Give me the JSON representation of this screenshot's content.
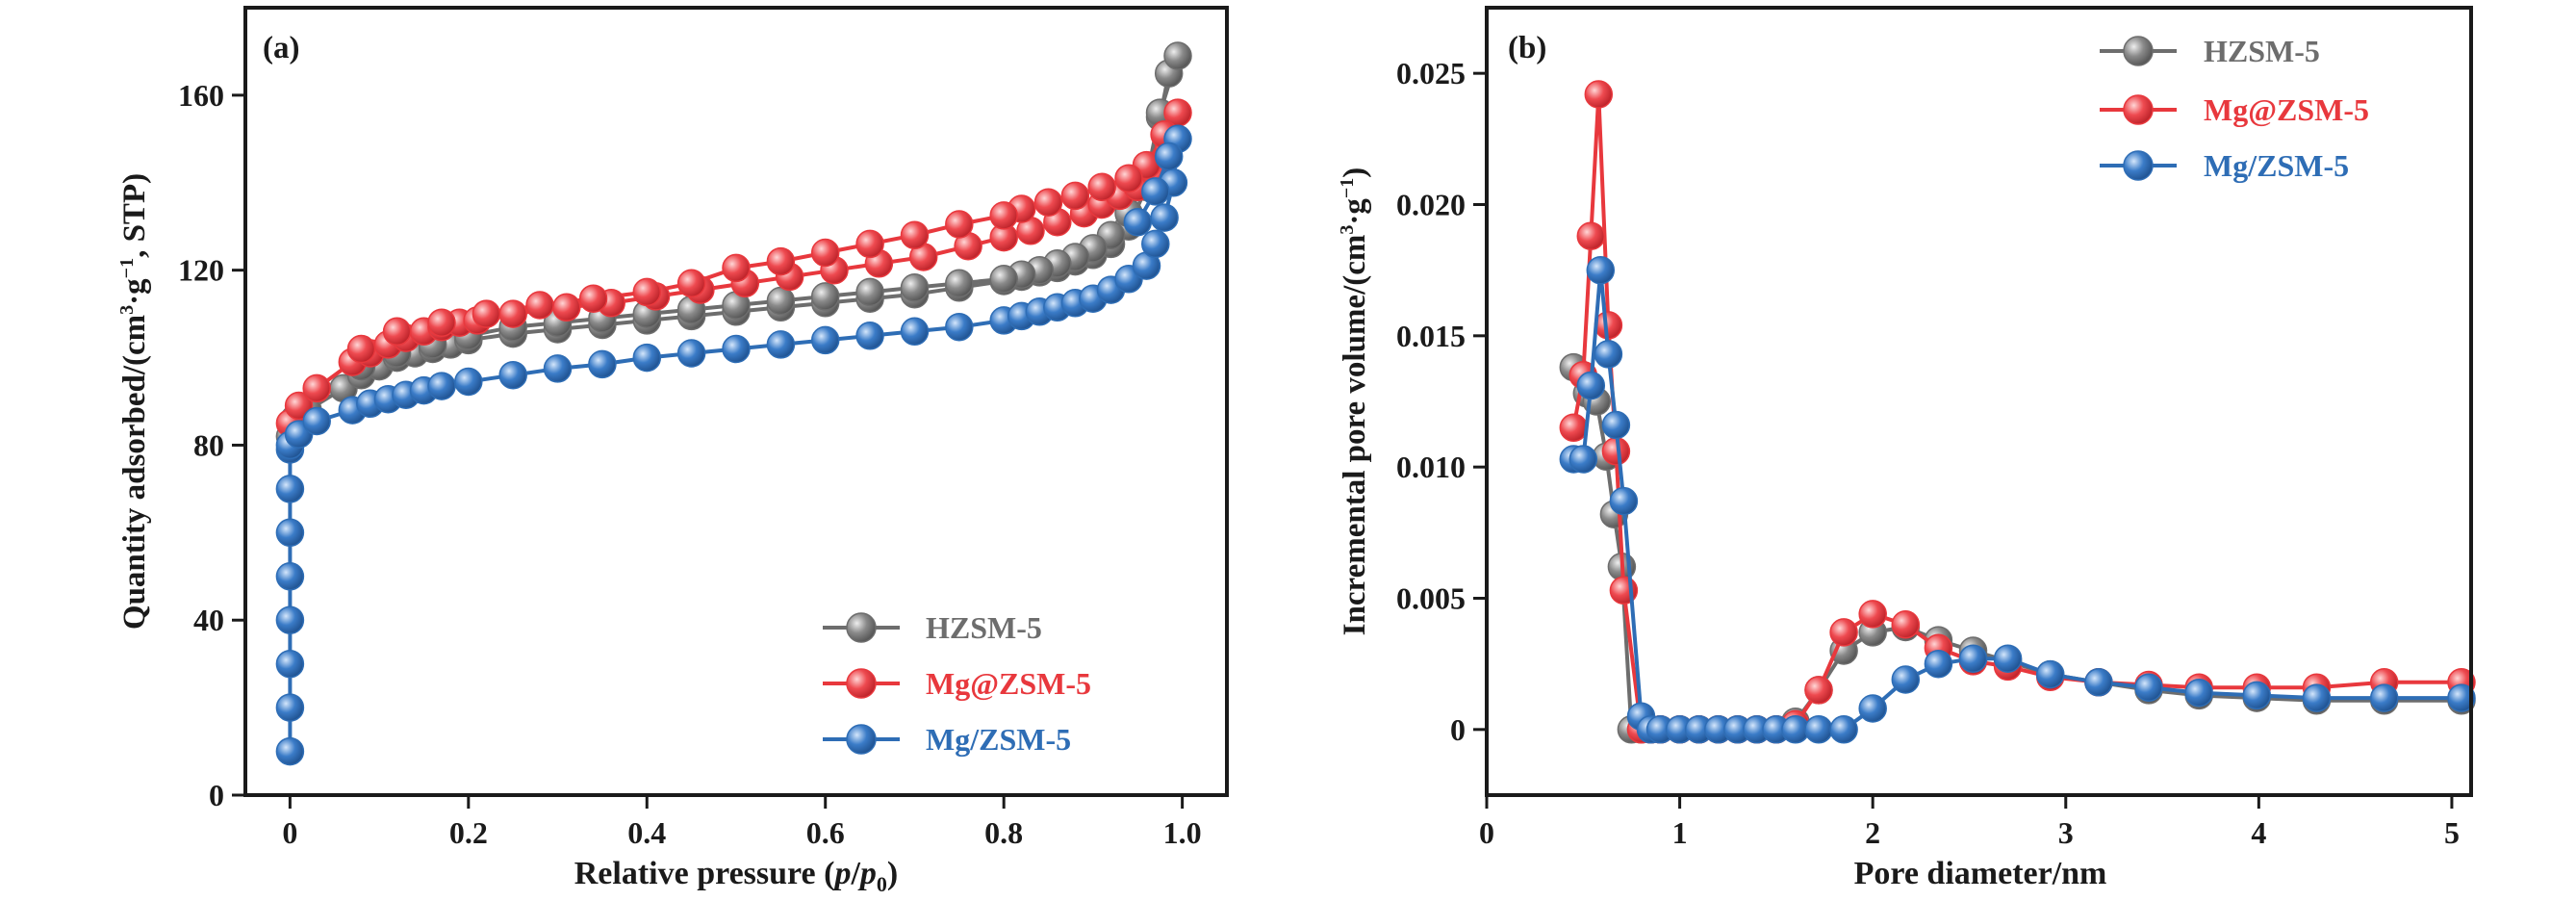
{
  "chart_data": [
    {
      "type": "line",
      "panel_label": "(a)",
      "xlabel_parts": [
        "Relative pressure (",
        "p",
        "/",
        "p",
        "0",
        ")"
      ],
      "ylabel_parts": [
        "Quantity adsorbed/(cm",
        "3",
        "·g",
        "−1",
        ", STP)"
      ],
      "xlim": [
        -0.05,
        1.05
      ],
      "ylim": [
        0,
        180
      ],
      "xticks": [
        0,
        0.2,
        0.4,
        0.6,
        0.8,
        1.0
      ],
      "xtick_labels": [
        "0",
        "0.2",
        "0.4",
        "0.6",
        "0.8",
        "1.0"
      ],
      "yticks": [
        0,
        40,
        80,
        120,
        160
      ],
      "ytick_labels": [
        "0",
        "40",
        "80",
        "120",
        "160"
      ],
      "grid": false,
      "legend_position": "bottom-right",
      "series": [
        {
          "name": "HZSM-5",
          "color": "#6d6d6d",
          "x": [
            0.0,
            0.005,
            0.02,
            0.06,
            0.08,
            0.1,
            0.12,
            0.14,
            0.16,
            0.18,
            0.2,
            0.25,
            0.3,
            0.35,
            0.4,
            0.45,
            0.5,
            0.55,
            0.6,
            0.65,
            0.7,
            0.75,
            0.8,
            0.82,
            0.84,
            0.86,
            0.88,
            0.9,
            0.92,
            0.94,
            0.96,
            0.975,
            0.985,
            0.995,
            0.975,
            0.96,
            0.94,
            0.92,
            0.9,
            0.88,
            0.86,
            0.84,
            0.82,
            0.8,
            0.75,
            0.7,
            0.65,
            0.6,
            0.55,
            0.5,
            0.45,
            0.4,
            0.35,
            0.3,
            0.25,
            0.2,
            0.16,
            0.12,
            0.08
          ],
          "y": [
            82,
            86,
            88,
            93,
            96,
            98,
            100,
            101,
            102,
            103,
            104,
            105.5,
            106.5,
            107.5,
            108.5,
            109.5,
            110.5,
            111.5,
            112.5,
            113.5,
            114.5,
            116,
            117.5,
            118.5,
            119.5,
            120.5,
            122,
            123.5,
            126,
            130,
            139,
            155,
            165,
            169,
            156,
            141,
            133,
            128,
            125,
            123,
            121.5,
            120,
            119,
            118,
            117,
            116,
            115,
            114,
            113,
            112,
            111,
            110,
            109,
            108,
            107,
            105,
            103,
            101,
            98
          ]
        },
        {
          "name": "Mg@ZSM-5",
          "color": "#e8383d",
          "x": [
            0.0,
            0.01,
            0.03,
            0.07,
            0.09,
            0.11,
            0.13,
            0.15,
            0.17,
            0.19,
            0.21,
            0.25,
            0.31,
            0.36,
            0.41,
            0.46,
            0.51,
            0.56,
            0.61,
            0.66,
            0.71,
            0.76,
            0.8,
            0.83,
            0.86,
            0.89,
            0.91,
            0.93,
            0.95,
            0.97,
            0.985,
            0.995,
            0.98,
            0.96,
            0.94,
            0.91,
            0.88,
            0.85,
            0.82,
            0.8,
            0.75,
            0.7,
            0.65,
            0.6,
            0.55,
            0.5,
            0.45,
            0.4,
            0.34,
            0.28,
            0.22,
            0.17,
            0.12,
            0.08
          ],
          "y": [
            85,
            89,
            93,
            99,
            101,
            103,
            104.5,
            106,
            107,
            108,
            108.5,
            110,
            111.5,
            112.5,
            114,
            115.5,
            117,
            118.5,
            120,
            121.5,
            123,
            125.5,
            127.5,
            129,
            131,
            133,
            135,
            137,
            139,
            142,
            148,
            156,
            151,
            144,
            141,
            139,
            137,
            135.5,
            134,
            132.5,
            130.5,
            128,
            126,
            124,
            122,
            120.5,
            117,
            115,
            113.5,
            112,
            110,
            108,
            106,
            102
          ]
        },
        {
          "name": "Mg/ZSM-5",
          "color": "#2e6db5",
          "x": [
            0.0,
            0.0,
            0.0,
            0.0,
            0.0,
            0.0,
            0.0,
            0.0,
            0.0,
            0.01,
            0.03,
            0.07,
            0.09,
            0.11,
            0.13,
            0.15,
            0.17,
            0.2,
            0.25,
            0.3,
            0.35,
            0.4,
            0.45,
            0.5,
            0.55,
            0.6,
            0.65,
            0.7,
            0.75,
            0.8,
            0.82,
            0.84,
            0.86,
            0.88,
            0.9,
            0.92,
            0.94,
            0.96,
            0.97,
            0.98,
            0.99,
            0.995,
            0.985,
            0.97,
            0.95
          ],
          "y": [
            10,
            20,
            30,
            40,
            50,
            60,
            70,
            79,
            80,
            82.5,
            85.5,
            88,
            89.5,
            90.5,
            91.5,
            92.5,
            93.5,
            94.5,
            96,
            97.5,
            98.5,
            100,
            101,
            102,
            103,
            104,
            105,
            106,
            107,
            108.5,
            109.5,
            110.5,
            111.5,
            112.5,
            113.5,
            115.5,
            118,
            121,
            126,
            132,
            140,
            150,
            146,
            138,
            131
          ]
        }
      ]
    },
    {
      "type": "line",
      "panel_label": "(b)",
      "xlabel": "Pore diameter/nm",
      "ylabel_parts": [
        "Incremental pore volume/(cm",
        "3",
        "·g",
        "−1",
        ")"
      ],
      "xlim": [
        0,
        5.1
      ],
      "ylim": [
        -0.0025,
        0.0275
      ],
      "xticks": [
        0,
        1,
        2,
        3,
        4,
        5
      ],
      "xtick_labels": [
        "0",
        "1",
        "2",
        "3",
        "4",
        "5"
      ],
      "yticks": [
        0,
        0.005,
        0.01,
        0.015,
        0.02,
        0.025
      ],
      "ytick_labels": [
        "0",
        "0.005",
        "0.010",
        "0.015",
        "0.020",
        "0.025"
      ],
      "grid": false,
      "legend_position": "top-right",
      "series": [
        {
          "name": "HZSM-5",
          "color": "#6d6d6d",
          "x": [
            0.45,
            0.52,
            0.57,
            0.62,
            0.66,
            0.7,
            0.75,
            0.8,
            0.85,
            0.9,
            1.0,
            1.1,
            1.2,
            1.3,
            1.4,
            1.5,
            1.6,
            1.72,
            1.85,
            2.0,
            2.17,
            2.34,
            2.52,
            2.7,
            2.92,
            3.17,
            3.43,
            3.69,
            3.99,
            4.3,
            4.65,
            5.05
          ],
          "y": [
            0.0138,
            0.0128,
            0.0125,
            0.0104,
            0.0082,
            0.0062,
            0.0,
            0.0,
            0.0,
            0.0,
            0.0,
            0.0,
            0.0,
            0.0,
            0.0,
            0.0,
            0.0003,
            0.0015,
            0.003,
            0.0037,
            0.0039,
            0.0034,
            0.003,
            0.0026,
            0.0021,
            0.0018,
            0.0015,
            0.0013,
            0.0012,
            0.0011,
            0.0011,
            0.0011
          ]
        },
        {
          "name": "Mg@ZSM-5",
          "color": "#e8383d",
          "x": [
            0.45,
            0.5,
            0.54,
            0.58,
            0.63,
            0.67,
            0.71,
            0.8,
            0.85,
            0.9,
            1.0,
            1.1,
            1.2,
            1.3,
            1.4,
            1.5,
            1.6,
            1.72,
            1.85,
            2.0,
            2.17,
            2.34,
            2.52,
            2.7,
            2.92,
            3.17,
            3.43,
            3.69,
            3.99,
            4.3,
            4.65,
            5.05
          ],
          "y": [
            0.0115,
            0.0135,
            0.0188,
            0.0242,
            0.0154,
            0.0106,
            0.0053,
            0.0,
            0.0,
            0.0,
            0.0,
            0.0,
            0.0,
            0.0,
            0.0,
            0.0,
            0.0002,
            0.0015,
            0.0037,
            0.0044,
            0.004,
            0.0031,
            0.0026,
            0.0024,
            0.002,
            0.0018,
            0.0017,
            0.0016,
            0.0016,
            0.0016,
            0.0018,
            0.0018
          ]
        },
        {
          "name": "Mg/ZSM-5",
          "color": "#2e6db5",
          "x": [
            0.45,
            0.5,
            0.54,
            0.59,
            0.63,
            0.67,
            0.71,
            0.8,
            0.85,
            0.9,
            1.0,
            1.1,
            1.2,
            1.3,
            1.4,
            1.5,
            1.6,
            1.72,
            1.85,
            2.0,
            2.17,
            2.34,
            2.52,
            2.7,
            2.92,
            3.17,
            3.43,
            3.69,
            3.99,
            4.3,
            4.65,
            5.05
          ],
          "y": [
            0.0103,
            0.0103,
            0.0131,
            0.0175,
            0.0143,
            0.0116,
            0.0087,
            0.0005,
            0.0,
            0.0,
            0.0,
            0.0,
            0.0,
            0.0,
            0.0,
            0.0,
            0.0,
            0.0,
            0.0,
            0.0008,
            0.0019,
            0.0025,
            0.0027,
            0.0027,
            0.0021,
            0.0018,
            0.0016,
            0.0014,
            0.0013,
            0.0012,
            0.0012,
            0.0012
          ]
        }
      ]
    }
  ]
}
